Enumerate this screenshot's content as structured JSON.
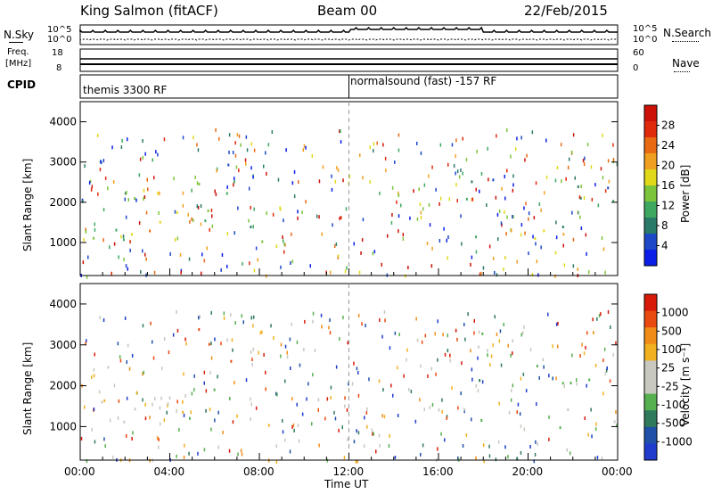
{
  "header": {
    "station": "King Salmon (fitACF)",
    "beam": "Beam 00",
    "date": "22/Feb/2015"
  },
  "top_panels": {
    "nsky_label": "N.Sky",
    "nsky_ticks": [
      "10^5",
      "10^0"
    ],
    "nsearch_label": "N.Search",
    "nsearch_ticks": [
      "10^5",
      "10^0"
    ],
    "freq_label_line1": "Freq.",
    "freq_label_line2": "[MHz]",
    "freq_ticks": [
      "18",
      "8"
    ],
    "nave_label": "Nave",
    "nave_ticks": [
      "60",
      "0"
    ],
    "cpid_label": "CPID",
    "cpid_segments": [
      {
        "start_hour": 0,
        "text": "themis 3300 RF"
      },
      {
        "start_hour": 12,
        "text": "normalsound (fast) -157 RF"
      }
    ]
  },
  "chart_data": [
    {
      "type": "heatmap",
      "name": "power",
      "ylabel": "Slant Range [km]",
      "xlabel": "Time UT",
      "xlim_hours": [
        0,
        24
      ],
      "ylim_km": [
        180,
        4500
      ],
      "yticks": [
        1000,
        2000,
        3000,
        4000
      ],
      "colorbar": {
        "label": "Power [dB]",
        "ticks": [
          "28",
          "24",
          "20",
          "16",
          "12",
          "8",
          "4"
        ],
        "colors": [
          "#0a1ee8",
          "#1d48c8",
          "#2a7a6a",
          "#3fa860",
          "#7cc43a",
          "#e0d818",
          "#f0a020",
          "#e86a12",
          "#e02a0c",
          "#cc1208"
        ]
      },
      "regions": [
        {
          "t0": 0.0,
          "t1": 2.4,
          "r0": 700,
          "r1": 2800,
          "level": 0.35
        },
        {
          "t0": 0.0,
          "t1": 2.6,
          "r0": 900,
          "r1": 1300,
          "level": 0.7
        },
        {
          "t0": 2.4,
          "t1": 4.8,
          "r0": 1100,
          "r1": 1700,
          "level": 0.6
        },
        {
          "t0": 3.5,
          "t1": 6.0,
          "r0": 1400,
          "r1": 2400,
          "level": 0.5
        },
        {
          "t0": 4.8,
          "t1": 6.9,
          "r0": 1700,
          "r1": 3500,
          "level": 0.3
        },
        {
          "t0": 6.5,
          "t1": 9.2,
          "r0": 1000,
          "r1": 1600,
          "level": 0.35
        },
        {
          "t0": 8.0,
          "t1": 9.3,
          "r0": 1050,
          "r1": 1300,
          "level": 0.5
        },
        {
          "t0": 16.8,
          "t1": 18.5,
          "r0": 1900,
          "r1": 3500,
          "level": 0.3
        },
        {
          "t0": 17.6,
          "t1": 24.0,
          "r0": 1000,
          "r1": 1600,
          "level": 0.45
        },
        {
          "t0": 18.5,
          "t1": 24.0,
          "r0": 1150,
          "r1": 1350,
          "level": 0.65
        },
        {
          "t0": 19.0,
          "t1": 24.0,
          "r0": 1900,
          "r1": 2700,
          "level": 0.3
        }
      ]
    },
    {
      "type": "heatmap",
      "name": "velocity",
      "ylabel": "Slant Range [km]",
      "xlabel": "Time UT",
      "xlim_hours": [
        0,
        24
      ],
      "ylim_km": [
        180,
        4500
      ],
      "yticks": [
        1000,
        2000,
        3000,
        4000
      ],
      "colorbar": {
        "label": "Velocity [m s⁻¹]",
        "ticks": [
          "1000",
          "500",
          "100",
          "25",
          "-25",
          "-100",
          "-500",
          "-1000"
        ],
        "colors": [
          "#1f3ccc",
          "#2050a8",
          "#2f7a5a",
          "#56b050",
          "#c8c8c0",
          "#c8c8c0",
          "#f0b020",
          "#f08c18",
          "#e84a10",
          "#d81a08"
        ]
      },
      "regions": [
        {
          "t0": 0.0,
          "t1": 2.6,
          "r0": 900,
          "r1": 1600,
          "level": 0.5
        },
        {
          "t0": 0.0,
          "t1": 2.4,
          "r0": 1600,
          "r1": 2800,
          "level": 0.6
        },
        {
          "t0": 2.4,
          "t1": 6.0,
          "r0": 1100,
          "r1": 2000,
          "level": 0.5
        },
        {
          "t0": 5.0,
          "t1": 6.9,
          "r0": 2400,
          "r1": 3600,
          "level": 0.8
        },
        {
          "t0": 6.5,
          "t1": 9.2,
          "r0": 1000,
          "r1": 1400,
          "level": 0.75
        },
        {
          "t0": 16.8,
          "t1": 18.5,
          "r0": 1900,
          "r1": 3500,
          "level": 0.35
        },
        {
          "t0": 17.6,
          "t1": 24.0,
          "r0": 1000,
          "r1": 1600,
          "level": 0.5
        },
        {
          "t0": 19.0,
          "t1": 24.0,
          "r0": 1900,
          "r1": 2700,
          "level": 0.4
        }
      ]
    }
  ],
  "x_axis": {
    "ticks": [
      "00:00",
      "04:00",
      "08:00",
      "12:00",
      "16:00",
      "20:00",
      "00:00"
    ],
    "label": "Time UT"
  }
}
